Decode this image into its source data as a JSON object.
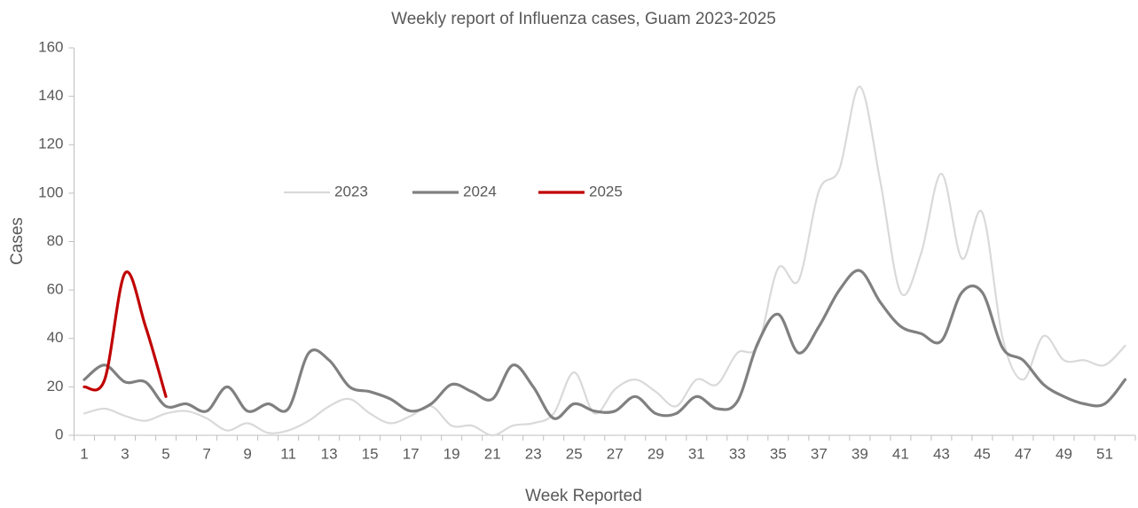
{
  "chart_data": {
    "type": "line",
    "title": "Weekly report of Influenza cases, Guam 2023-2025",
    "x_label": "Week Reported",
    "y_label": "Cases",
    "categories": [
      "1",
      null,
      "3",
      null,
      "5",
      null,
      "7",
      null,
      "9",
      null,
      "11",
      null,
      "13",
      null,
      "15",
      null,
      "17",
      null,
      "19",
      null,
      "21",
      null,
      "23",
      null,
      "25",
      null,
      "27",
      null,
      "29",
      null,
      "31",
      null,
      "33",
      null,
      "35",
      null,
      "37",
      null,
      "39",
      null,
      "41",
      null,
      "43",
      null,
      "45",
      null,
      "47",
      null,
      "49",
      null,
      "51",
      null
    ],
    "series": [
      {
        "name": "2023",
        "color": "#d9d9d9",
        "width": 2.2,
        "values": [
          9,
          11,
          8,
          6,
          9,
          10,
          7,
          2,
          5,
          1,
          2,
          6,
          12,
          15,
          9,
          5,
          8,
          12,
          4,
          4,
          0,
          4,
          5,
          9,
          26,
          9,
          19,
          23,
          18,
          12,
          23,
          21,
          34,
          37,
          69,
          64,
          101,
          110,
          144,
          105,
          59,
          75,
          108,
          73,
          92,
          40,
          23,
          41,
          31,
          31,
          29,
          37
        ]
      },
      {
        "name": "2024",
        "color": "#808080",
        "width": 3.2,
        "values": [
          23,
          29,
          22,
          22,
          12,
          13,
          10,
          20,
          10,
          13,
          11,
          34,
          31,
          20,
          18,
          15,
          10,
          13,
          21,
          18,
          15,
          29,
          20,
          7,
          13,
          10,
          10,
          16,
          9,
          9,
          16,
          11,
          14,
          38,
          50,
          34,
          45,
          60,
          68,
          55,
          45,
          42,
          39,
          59,
          59,
          36,
          31,
          21,
          16,
          13,
          13,
          23
        ]
      },
      {
        "name": "2025",
        "color": "#c00000",
        "width": 3.2,
        "values": [
          20,
          23,
          67,
          45,
          16,
          null,
          null,
          null,
          null,
          null,
          null,
          null,
          null,
          null,
          null,
          null,
          null,
          null,
          null,
          null,
          null,
          null,
          null,
          null,
          null,
          null,
          null,
          null,
          null,
          null,
          null,
          null,
          null,
          null,
          null,
          null,
          null,
          null,
          null,
          null,
          null,
          null,
          null,
          null,
          null,
          null,
          null,
          null,
          null,
          null,
          null,
          null
        ]
      }
    ],
    "ylim": [
      0,
      160
    ],
    "yticks": [
      0,
      20,
      40,
      60,
      80,
      100,
      120,
      140,
      160
    ],
    "smooth": true
  }
}
